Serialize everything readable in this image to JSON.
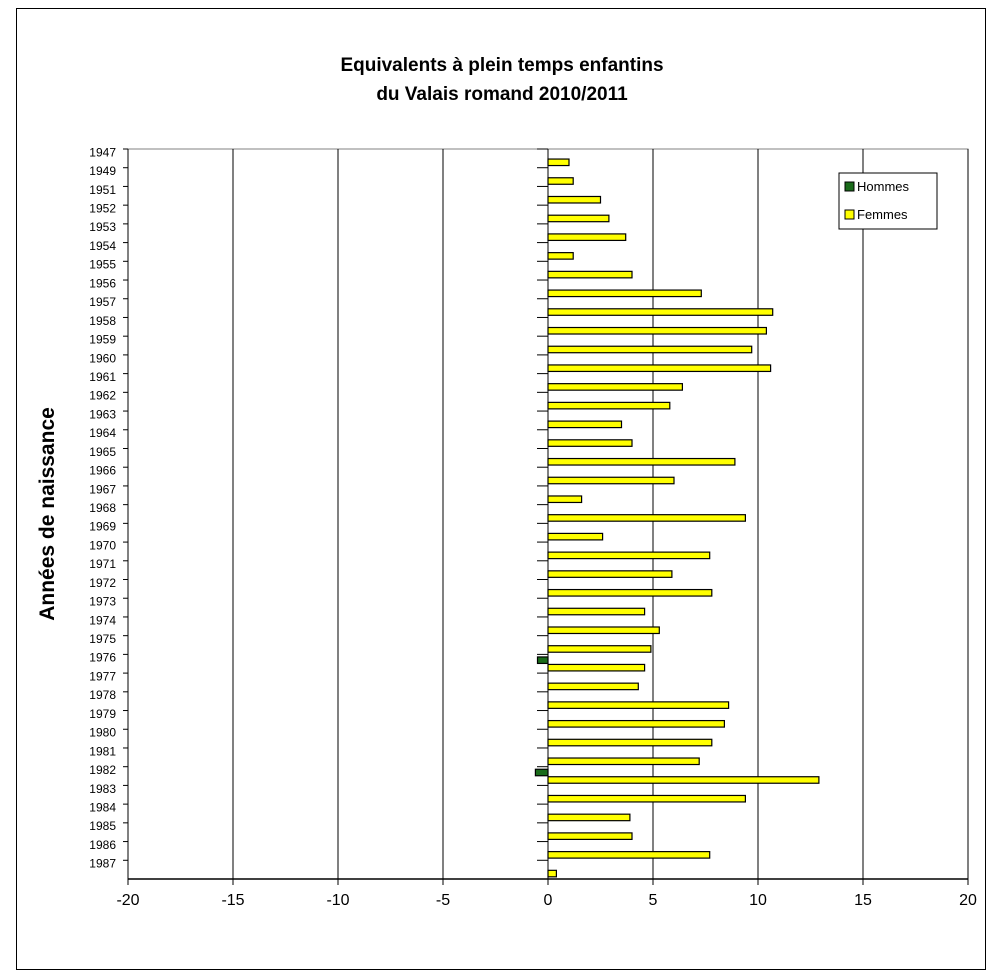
{
  "chart_data": {
    "type": "bar",
    "orientation": "horizontal",
    "title": [
      "Equivalents à plein temps enfantins",
      "du Valais romand 2010/2011"
    ],
    "ylabel": "Années de naissance",
    "xlabel": "",
    "xlim": [
      -20,
      20
    ],
    "xticks": [
      -20,
      -15,
      -10,
      -5,
      0,
      5,
      10,
      15,
      20
    ],
    "grid": "vertical",
    "legend_position": "top-right",
    "categories": [
      "1947",
      "1949",
      "1951",
      "1952",
      "1953",
      "1954",
      "1955",
      "1956",
      "1957",
      "1958",
      "1959",
      "1960",
      "1961",
      "1962",
      "1963",
      "1964",
      "1965",
      "1966",
      "1967",
      "1968",
      "1969",
      "1970",
      "1971",
      "1972",
      "1973",
      "1974",
      "1975",
      "1976",
      "1977",
      "1978",
      "1979",
      "1980",
      "1981",
      "1982",
      "1983",
      "1984",
      "1985",
      "1986",
      "1987"
    ],
    "series": [
      {
        "name": "Hommes",
        "color": "#1a6b1a",
        "values": [
          0,
          0,
          0,
          0,
          0,
          0,
          0,
          0,
          0,
          0,
          0,
          0,
          0,
          0,
          0,
          0,
          0,
          0,
          0,
          0,
          0,
          0,
          0,
          0,
          0,
          0,
          0,
          -0.5,
          0,
          0,
          0,
          0,
          0,
          -0.6,
          0,
          0,
          0,
          0,
          0
        ]
      },
      {
        "name": "Femmes",
        "color": "#ffff00",
        "values": [
          1.0,
          1.2,
          2.5,
          2.9,
          3.7,
          1.2,
          4.0,
          7.3,
          10.7,
          10.4,
          9.7,
          10.6,
          6.4,
          5.8,
          3.5,
          4.0,
          8.9,
          6.0,
          1.6,
          9.4,
          2.6,
          7.7,
          5.9,
          7.8,
          4.6,
          5.3,
          4.9,
          4.6,
          4.3,
          8.6,
          8.4,
          7.8,
          7.2,
          12.9,
          9.4,
          3.9,
          4.0,
          7.7,
          0.4
        ]
      }
    ]
  }
}
